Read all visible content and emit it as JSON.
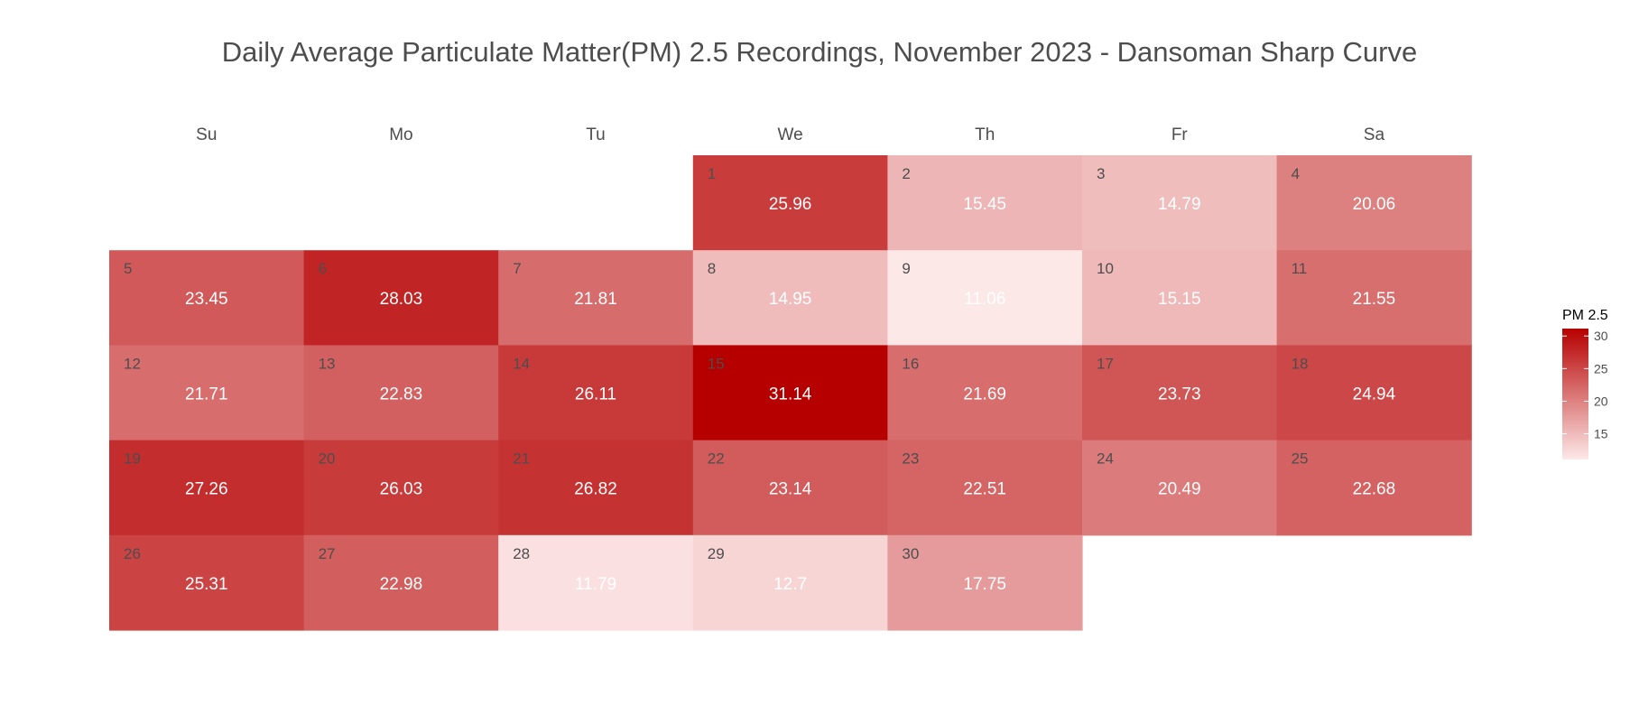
{
  "chart_data": {
    "type": "heatmap",
    "title": "Daily Average Particulate Matter(PM) 2.5 Recordings, November 2023 - Dansoman Sharp Curve",
    "weekdays": [
      "Su",
      "Mo",
      "Tu",
      "We",
      "Th",
      "Fr",
      "Sa"
    ],
    "first_weekday_index": 3,
    "days": [
      1,
      2,
      3,
      4,
      5,
      6,
      7,
      8,
      9,
      10,
      11,
      12,
      13,
      14,
      15,
      16,
      17,
      18,
      19,
      20,
      21,
      22,
      23,
      24,
      25,
      26,
      27,
      28,
      29,
      30
    ],
    "values": [
      25.96,
      15.45,
      14.79,
      20.06,
      23.45,
      28.03,
      21.81,
      14.95,
      11.06,
      15.15,
      21.55,
      21.71,
      22.83,
      26.11,
      31.14,
      21.69,
      23.73,
      24.94,
      27.26,
      26.03,
      26.82,
      23.14,
      22.51,
      20.49,
      22.68,
      25.31,
      22.98,
      11.79,
      12.7,
      17.75
    ],
    "legend": {
      "title": "PM 2.5",
      "ticks": [
        15,
        20,
        25,
        30
      ],
      "range": [
        11.06,
        31.14
      ],
      "placement": "right"
    },
    "colors": {
      "low": "#fde8e8",
      "high": "#b60000",
      "value_text": "#ffffff",
      "day_text": "#4d4d4d"
    },
    "grid": false
  }
}
